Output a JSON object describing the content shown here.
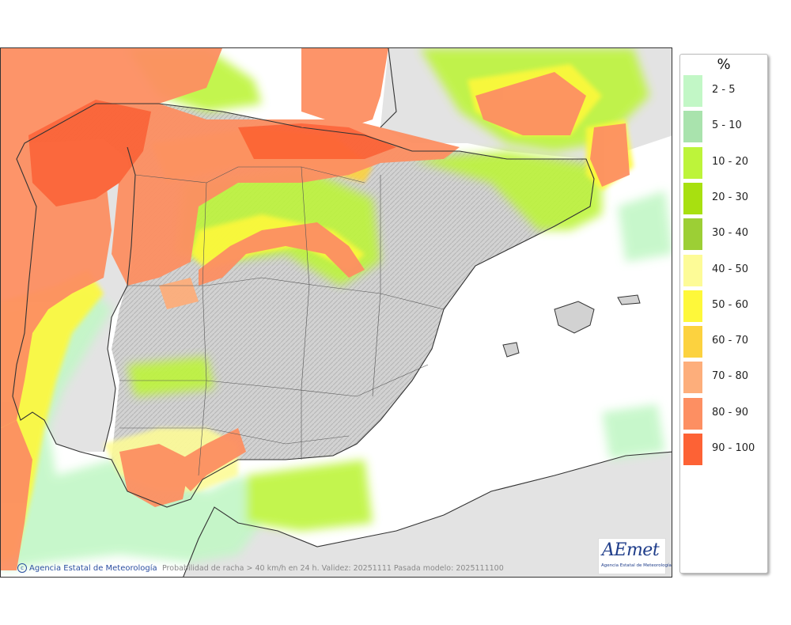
{
  "legend": {
    "unit": "%",
    "classes": [
      {
        "label": "2 - 5",
        "color": "#c2f7c6"
      },
      {
        "label": "5 - 10",
        "color": "#a9e3ad"
      },
      {
        "label": "10 - 20",
        "color": "#bdf43a"
      },
      {
        "label": "20 - 30",
        "color": "#a8e010"
      },
      {
        "label": "30 - 40",
        "color": "#9ccf35"
      },
      {
        "label": "40 - 50",
        "color": "#fdfb97"
      },
      {
        "label": "50 - 60",
        "color": "#fef83a"
      },
      {
        "label": "60 - 70",
        "color": "#fcd23f"
      },
      {
        "label": "70 - 80",
        "color": "#fdae7b"
      },
      {
        "label": "80 - 90",
        "color": "#fd8f62"
      },
      {
        "label": "90 - 100",
        "color": "#fd6235"
      }
    ]
  },
  "footer": {
    "credit": "Agencia Estatal de Meteorología",
    "caption": "Probabilidad de racha > 40 km/h en 24 h. Validez: 20251111 Pasada modelo: 2025111100"
  },
  "logo": {
    "word": "AEmet",
    "subtitle": "Agencia Estatal de Meteorología"
  },
  "colors": {
    "land_neutral": "#e3e3e3",
    "spain_relief": "#c9c9c9",
    "border_lines": "#333333"
  }
}
